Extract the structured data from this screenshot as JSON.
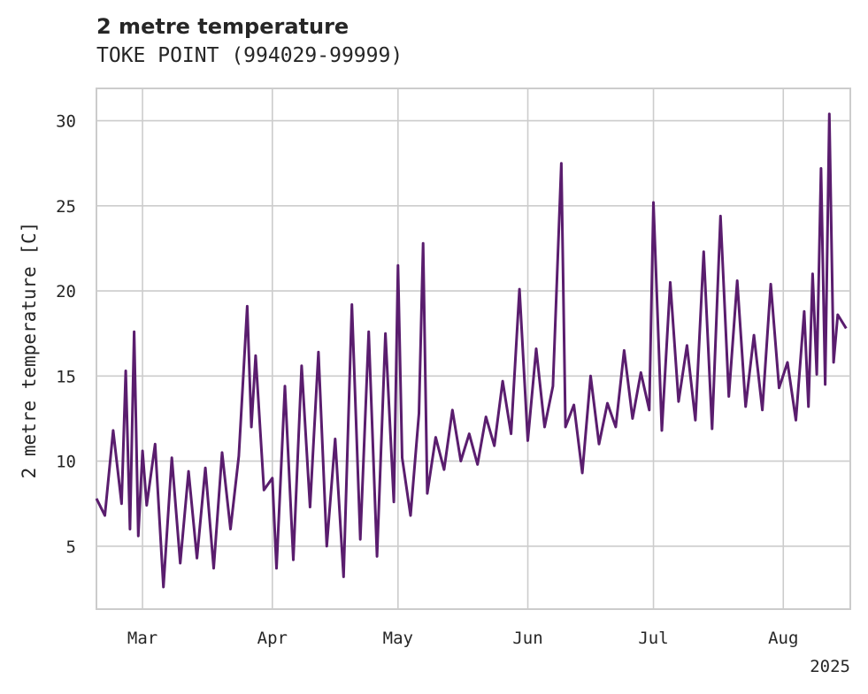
{
  "chart_data": {
    "type": "line",
    "title": "2 metre temperature",
    "subtitle": "TOKE POINT (994029-99999)",
    "xlabel": "",
    "ylabel": "2 metre temperature [C]",
    "x_tick_labels": [
      "Mar",
      "Apr",
      "May",
      "Jun",
      "Jul",
      "Aug"
    ],
    "x_tick_dates": [
      "2025-03-01",
      "2025-04-01",
      "2025-05-01",
      "2025-06-01",
      "2025-07-01",
      "2025-08-01"
    ],
    "x_year_label": "2025",
    "y_ticks": [
      5,
      10,
      15,
      20,
      25,
      30
    ],
    "xlim": [
      "2025-02-18",
      "2025-08-17"
    ],
    "ylim": [
      1.3,
      31.9
    ],
    "grid": true,
    "line_color": "#5a1d6e",
    "series": [
      {
        "x": [
          "2025-02-18",
          "2025-02-20",
          "2025-02-22",
          "2025-02-24",
          "2025-02-25",
          "2025-02-26",
          "2025-02-27",
          "2025-02-28",
          "2025-03-01",
          "2025-03-02",
          "2025-03-04",
          "2025-03-06",
          "2025-03-08",
          "2025-03-10",
          "2025-03-12",
          "2025-03-14",
          "2025-03-16",
          "2025-03-18",
          "2025-03-20",
          "2025-03-22",
          "2025-03-24",
          "2025-03-26",
          "2025-03-27",
          "2025-03-28",
          "2025-03-30",
          "2025-04-01",
          "2025-04-02",
          "2025-04-04",
          "2025-04-06",
          "2025-04-08",
          "2025-04-10",
          "2025-04-12",
          "2025-04-14",
          "2025-04-16",
          "2025-04-18",
          "2025-04-20",
          "2025-04-22",
          "2025-04-24",
          "2025-04-26",
          "2025-04-28",
          "2025-04-30",
          "2025-05-01",
          "2025-05-02",
          "2025-05-04",
          "2025-05-06",
          "2025-05-07",
          "2025-05-08",
          "2025-05-10",
          "2025-05-12",
          "2025-05-14",
          "2025-05-16",
          "2025-05-18",
          "2025-05-20",
          "2025-05-22",
          "2025-05-24",
          "2025-05-26",
          "2025-05-28",
          "2025-05-30",
          "2025-06-01",
          "2025-06-03",
          "2025-06-05",
          "2025-06-07",
          "2025-06-08",
          "2025-06-09",
          "2025-06-10",
          "2025-06-12",
          "2025-06-14",
          "2025-06-16",
          "2025-06-18",
          "2025-06-20",
          "2025-06-22",
          "2025-06-24",
          "2025-06-26",
          "2025-06-28",
          "2025-06-30",
          "2025-07-01",
          "2025-07-03",
          "2025-07-05",
          "2025-07-07",
          "2025-07-09",
          "2025-07-11",
          "2025-07-13",
          "2025-07-15",
          "2025-07-17",
          "2025-07-19",
          "2025-07-21",
          "2025-07-23",
          "2025-07-25",
          "2025-07-27",
          "2025-07-29",
          "2025-07-31",
          "2025-08-02",
          "2025-08-04",
          "2025-08-06",
          "2025-08-07",
          "2025-08-08",
          "2025-08-09",
          "2025-08-10",
          "2025-08-11",
          "2025-08-12",
          "2025-08-13",
          "2025-08-14",
          "2025-08-16"
        ],
        "y": [
          7.8,
          6.8,
          11.8,
          7.5,
          15.3,
          6.0,
          17.6,
          5.6,
          10.6,
          7.4,
          11.0,
          2.6,
          10.2,
          4.0,
          9.4,
          4.3,
          9.6,
          3.7,
          10.5,
          6.0,
          10.3,
          19.1,
          12.0,
          16.2,
          8.3,
          9.0,
          3.7,
          14.4,
          4.2,
          15.6,
          7.3,
          16.4,
          5.0,
          11.3,
          3.2,
          19.2,
          5.4,
          17.6,
          4.4,
          17.5,
          7.6,
          21.5,
          10.2,
          6.8,
          12.8,
          22.8,
          8.1,
          11.4,
          9.5,
          13.0,
          10.0,
          11.6,
          9.8,
          12.6,
          10.9,
          14.7,
          11.6,
          20.1,
          11.2,
          16.6,
          12.0,
          14.4,
          21.0,
          27.5,
          12.0,
          13.3,
          9.3,
          15.0,
          11.0,
          13.4,
          12.0,
          16.5,
          12.5,
          15.2,
          13.0,
          25.2,
          11.8,
          20.5,
          13.5,
          16.8,
          12.4,
          22.3,
          11.9,
          24.4,
          13.8,
          20.6,
          13.2,
          17.4,
          13.0,
          20.4,
          14.3,
          15.8,
          12.4,
          18.8,
          13.2,
          21.0,
          15.1,
          27.2,
          14.5,
          30.4,
          15.8,
          18.6,
          17.8
        ]
      }
    ]
  }
}
